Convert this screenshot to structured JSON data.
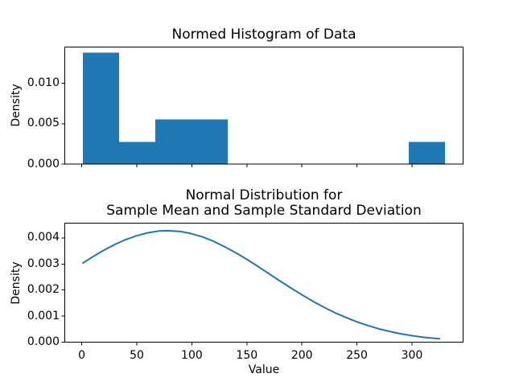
{
  "figure": {
    "background": "#ffffff",
    "text_color": "#000000",
    "spine_color": "#000000",
    "accent_blue": "#1f77b4"
  },
  "chart_data": [
    {
      "type": "bar",
      "title": "Normed Histogram of Data",
      "xlabel": "",
      "ylabel": "Density",
      "bar_color": "#1f77b4",
      "bin_edges": [
        1.0,
        33.9,
        66.8,
        99.7,
        132.6,
        165.5,
        198.4,
        231.3,
        264.2,
        297.1,
        330.0
      ],
      "densities": [
        0.01382,
        0.00276,
        0.00553,
        0.00553,
        0,
        0,
        0,
        0,
        0,
        0.00276
      ],
      "xlim": [
        -15.45,
        346.45
      ],
      "ylim": [
        0,
        0.0145
      ],
      "x_ticks": [
        0,
        50,
        100,
        150,
        200,
        250,
        300
      ],
      "x_tick_labels": [],
      "y_ticks": [
        0,
        0.005,
        0.01
      ],
      "y_tick_labels": [
        "0.000",
        "0.005",
        "0.010"
      ],
      "grid": false,
      "legend": null
    },
    {
      "type": "line",
      "title_lines": [
        "Normal Distribution for",
        "Sample Mean and Sample Standard Deviation"
      ],
      "xlabel": "Value",
      "ylabel": "Density",
      "line_color": "#1f77b4",
      "x": [
        1,
        10,
        20,
        30,
        40,
        50,
        60,
        70,
        78,
        90,
        100,
        110,
        120,
        130,
        140,
        150,
        160,
        170,
        180,
        190,
        200,
        210,
        220,
        230,
        240,
        250,
        260,
        270,
        280,
        290,
        300,
        310,
        320,
        325
      ],
      "y": [
        0.00304,
        0.00328,
        0.00353,
        0.00375,
        0.00394,
        0.00409,
        0.0042,
        0.00427,
        0.00428,
        0.00425,
        0.00416,
        0.00404,
        0.00387,
        0.00366,
        0.00343,
        0.00318,
        0.00291,
        0.00263,
        0.00235,
        0.00208,
        0.00182,
        0.00157,
        0.00134,
        0.00113,
        0.00095,
        0.00078,
        0.00064,
        0.00051,
        0.00041,
        0.00032,
        0.00025,
        0.00019,
        0.00015,
        0.00013
      ],
      "xlim": [
        -15.45,
        346.45
      ],
      "ylim": [
        0,
        0.00457
      ],
      "x_ticks": [
        0,
        50,
        100,
        150,
        200,
        250,
        300
      ],
      "x_tick_labels": [
        "0",
        "50",
        "100",
        "150",
        "200",
        "250",
        "300"
      ],
      "y_ticks": [
        0,
        0.001,
        0.002,
        0.003,
        0.004
      ],
      "y_tick_labels": [
        "0.000",
        "0.001",
        "0.002",
        "0.003",
        "0.004"
      ],
      "grid": false,
      "legend": null
    }
  ]
}
